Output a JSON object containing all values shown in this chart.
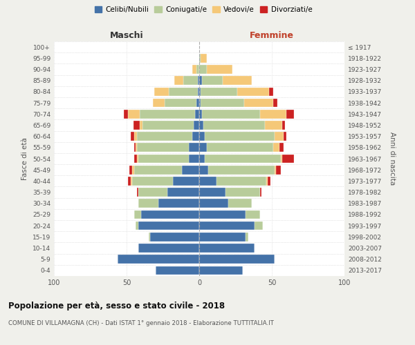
{
  "age_groups": [
    "0-4",
    "5-9",
    "10-14",
    "15-19",
    "20-24",
    "25-29",
    "30-34",
    "35-39",
    "40-44",
    "45-49",
    "50-54",
    "55-59",
    "60-64",
    "65-69",
    "70-74",
    "75-79",
    "80-84",
    "85-89",
    "90-94",
    "95-99",
    "100+"
  ],
  "birth_years": [
    "2013-2017",
    "2008-2012",
    "2003-2007",
    "1998-2002",
    "1993-1997",
    "1988-1992",
    "1983-1987",
    "1978-1982",
    "1973-1977",
    "1968-1972",
    "1963-1967",
    "1958-1962",
    "1953-1957",
    "1948-1952",
    "1943-1947",
    "1938-1942",
    "1933-1937",
    "1928-1932",
    "1923-1927",
    "1918-1922",
    "≤ 1917"
  ],
  "male_celibi": [
    30,
    56,
    42,
    34,
    42,
    40,
    28,
    22,
    18,
    12,
    7,
    7,
    5,
    4,
    3,
    2,
    1,
    1,
    0,
    0,
    0
  ],
  "male_coniugati": [
    0,
    0,
    0,
    1,
    2,
    5,
    14,
    20,
    28,
    33,
    35,
    36,
    38,
    35,
    38,
    22,
    20,
    10,
    2,
    0,
    0
  ],
  "male_vedovi": [
    0,
    0,
    0,
    0,
    0,
    0,
    0,
    0,
    1,
    1,
    1,
    1,
    2,
    2,
    8,
    8,
    10,
    6,
    3,
    0,
    0
  ],
  "male_divorziati": [
    0,
    0,
    0,
    0,
    0,
    0,
    0,
    1,
    2,
    2,
    2,
    1,
    2,
    4,
    3,
    0,
    0,
    0,
    0,
    0,
    0
  ],
  "female_nubili": [
    30,
    52,
    38,
    32,
    38,
    32,
    20,
    18,
    12,
    6,
    4,
    5,
    4,
    3,
    2,
    1,
    1,
    2,
    0,
    0,
    0
  ],
  "female_coniugate": [
    0,
    0,
    0,
    2,
    6,
    10,
    16,
    24,
    34,
    46,
    52,
    46,
    48,
    42,
    40,
    30,
    25,
    14,
    5,
    1,
    0
  ],
  "female_vedove": [
    0,
    0,
    0,
    0,
    0,
    0,
    0,
    0,
    1,
    1,
    1,
    4,
    6,
    12,
    18,
    20,
    22,
    20,
    18,
    4,
    0
  ],
  "female_divorziate": [
    0,
    0,
    0,
    0,
    0,
    0,
    0,
    1,
    2,
    3,
    8,
    3,
    2,
    2,
    5,
    3,
    3,
    0,
    0,
    0,
    0
  ],
  "color_celibi": "#4472a8",
  "color_coniugati": "#b8cc9a",
  "color_vedovi": "#f5c878",
  "color_divorziati": "#cc2222",
  "xlim": 100,
  "title": "Popolazione per età, sesso e stato civile - 2018",
  "subtitle": "COMUNE DI VILLAMAGNA (CH) - Dati ISTAT 1° gennaio 2018 - Elaborazione TUTTITALIA.IT",
  "ylabel_left": "Fasce di età",
  "ylabel_right": "Anni di nascita",
  "legend_labels": [
    "Celibi/Nubili",
    "Coniugati/e",
    "Vedovi/e",
    "Divorziati/e"
  ],
  "maschi_label": "Maschi",
  "femmine_label": "Femmine",
  "bg_color": "#f0f0eb",
  "plot_bg_color": "#ffffff"
}
